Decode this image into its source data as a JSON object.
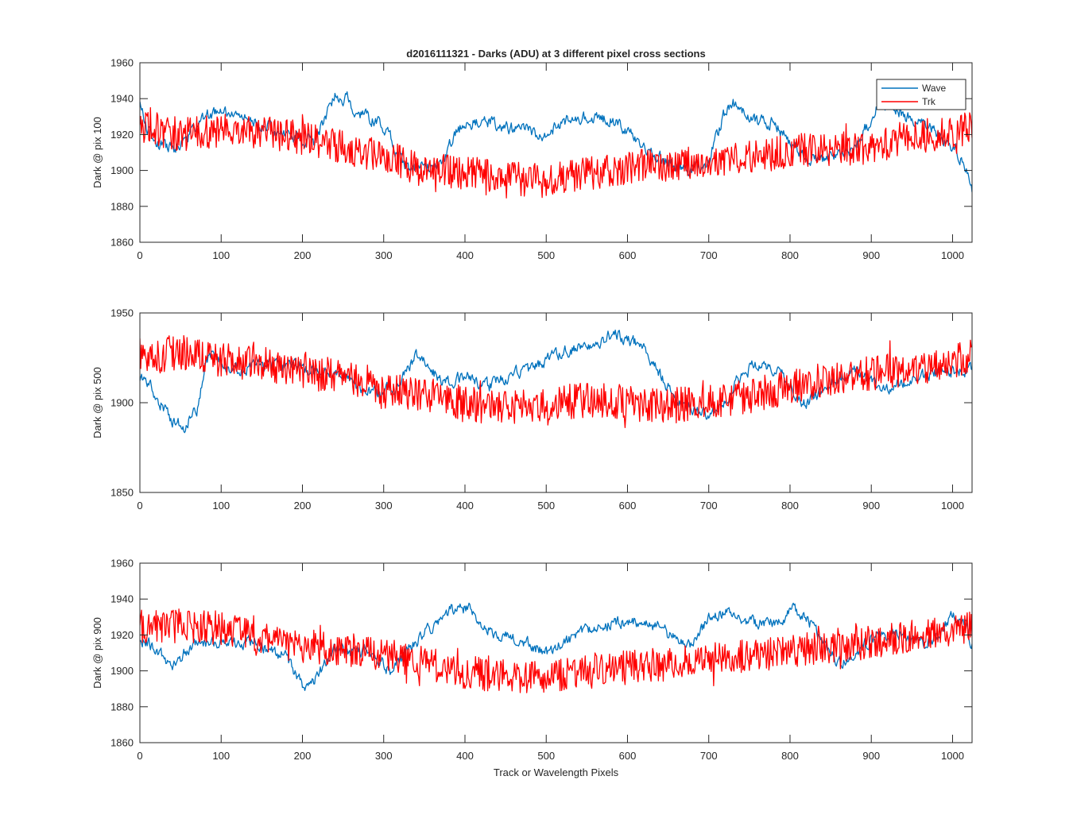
{
  "chart_data": [
    {
      "type": "line",
      "title": "d2016111321 - Darks (ADU) at 3 different pixel cross sections",
      "xlabel": "",
      "ylabel": "Dark @ pix 100",
      "xlim": [
        0,
        1024
      ],
      "ylim": [
        1860,
        1960
      ],
      "xticks": [
        0,
        100,
        200,
        300,
        400,
        500,
        600,
        700,
        800,
        900,
        1000
      ],
      "yticks": [
        1860,
        1880,
        1900,
        1920,
        1940,
        1960
      ],
      "legend": {
        "position": "top-right",
        "entries": [
          "Wave",
          "Trk"
        ]
      },
      "grid": false,
      "series": [
        {
          "name": "Wave",
          "color": "#0072BD",
          "keypoints": [
            [
              0,
              1938
            ],
            [
              8,
              1924
            ],
            [
              20,
              1915
            ],
            [
              40,
              1912
            ],
            [
              60,
              1920
            ],
            [
              80,
              1930
            ],
            [
              100,
              1933
            ],
            [
              120,
              1930
            ],
            [
              140,
              1928
            ],
            [
              160,
              1924
            ],
            [
              180,
              1920
            ],
            [
              200,
              1917
            ],
            [
              215,
              1916
            ],
            [
              228,
              1930
            ],
            [
              240,
              1942
            ],
            [
              255,
              1940
            ],
            [
              270,
              1931
            ],
            [
              290,
              1928
            ],
            [
              305,
              1922
            ],
            [
              315,
              1910
            ],
            [
              330,
              1901
            ],
            [
              345,
              1900
            ],
            [
              360,
              1904
            ],
            [
              375,
              1906
            ],
            [
              385,
              1918
            ],
            [
              400,
              1926
            ],
            [
              420,
              1928
            ],
            [
              440,
              1925
            ],
            [
              460,
              1923
            ],
            [
              480,
              1922
            ],
            [
              495,
              1919
            ],
            [
              510,
              1924
            ],
            [
              530,
              1929
            ],
            [
              560,
              1930
            ],
            [
              580,
              1928
            ],
            [
              600,
              1922
            ],
            [
              620,
              1912
            ],
            [
              640,
              1907
            ],
            [
              660,
              1903
            ],
            [
              680,
              1901
            ],
            [
              700,
              1906
            ],
            [
              718,
              1930
            ],
            [
              730,
              1937
            ],
            [
              745,
              1932
            ],
            [
              760,
              1926
            ],
            [
              780,
              1927
            ],
            [
              800,
              1915
            ],
            [
              820,
              1908
            ],
            [
              840,
              1905
            ],
            [
              860,
              1910
            ],
            [
              880,
              1913
            ],
            [
              895,
              1925
            ],
            [
              910,
              1938
            ],
            [
              930,
              1933
            ],
            [
              950,
              1929
            ],
            [
              970,
              1925
            ],
            [
              990,
              1917
            ],
            [
              1000,
              1914
            ],
            [
              1010,
              1908
            ],
            [
              1018,
              1898
            ],
            [
              1024,
              1890
            ]
          ],
          "amplitude": 3.5
        },
        {
          "name": "Trk",
          "color": "#FF0000",
          "keypoints": [
            [
              0,
              1925
            ],
            [
              50,
              1920
            ],
            [
              100,
              1922
            ],
            [
              150,
              1922
            ],
            [
              200,
              1918
            ],
            [
              250,
              1913
            ],
            [
              300,
              1908
            ],
            [
              350,
              1900
            ],
            [
              400,
              1899
            ],
            [
              450,
              1896
            ],
            [
              500,
              1894
            ],
            [
              550,
              1898
            ],
            [
              600,
              1902
            ],
            [
              650,
              1903
            ],
            [
              700,
              1904
            ],
            [
              750,
              1907
            ],
            [
              800,
              1911
            ],
            [
              850,
              1912
            ],
            [
              900,
              1913
            ],
            [
              950,
              1918
            ],
            [
              1000,
              1922
            ],
            [
              1024,
              1923
            ]
          ],
          "amplitude": 9.5
        }
      ]
    },
    {
      "type": "line",
      "title": "",
      "xlabel": "",
      "ylabel": "Dark @ pix 500",
      "xlim": [
        0,
        1024
      ],
      "ylim": [
        1850,
        1950
      ],
      "xticks": [
        0,
        100,
        200,
        300,
        400,
        500,
        600,
        700,
        800,
        900,
        1000
      ],
      "yticks": [
        1850,
        1900,
        1950
      ],
      "grid": false,
      "series": [
        {
          "name": "Wave",
          "color": "#0072BD",
          "keypoints": [
            [
              0,
              1914
            ],
            [
              10,
              1912
            ],
            [
              25,
              1900
            ],
            [
              40,
              1890
            ],
            [
              55,
              1887
            ],
            [
              70,
              1895
            ],
            [
              80,
              1920
            ],
            [
              90,
              1930
            ],
            [
              110,
              1918
            ],
            [
              140,
              1920
            ],
            [
              180,
              1921
            ],
            [
              200,
              1919
            ],
            [
              230,
              1916
            ],
            [
              255,
              1914
            ],
            [
              275,
              1906
            ],
            [
              300,
              1906
            ],
            [
              320,
              1912
            ],
            [
              340,
              1927
            ],
            [
              350,
              1925
            ],
            [
              370,
              1912
            ],
            [
              400,
              1914
            ],
            [
              430,
              1909
            ],
            [
              460,
              1916
            ],
            [
              480,
              1918
            ],
            [
              500,
              1924
            ],
            [
              520,
              1928
            ],
            [
              560,
              1933
            ],
            [
              580,
              1938
            ],
            [
              600,
              1936
            ],
            [
              620,
              1930
            ],
            [
              640,
              1916
            ],
            [
              660,
              1902
            ],
            [
              680,
              1896
            ],
            [
              700,
              1893
            ],
            [
              720,
              1902
            ],
            [
              740,
              1915
            ],
            [
              760,
              1922
            ],
            [
              790,
              1915
            ],
            [
              810,
              1904
            ],
            [
              820,
              1898
            ],
            [
              840,
              1908
            ],
            [
              860,
              1914
            ],
            [
              880,
              1917
            ],
            [
              900,
              1912
            ],
            [
              910,
              1906
            ],
            [
              930,
              1910
            ],
            [
              960,
              1914
            ],
            [
              990,
              1918
            ],
            [
              1024,
              1918
            ]
          ],
          "amplitude": 3.5
        },
        {
          "name": "Trk",
          "color": "#FF0000",
          "keypoints": [
            [
              0,
              1926
            ],
            [
              50,
              1928
            ],
            [
              100,
              1924
            ],
            [
              150,
              1922
            ],
            [
              200,
              1918
            ],
            [
              250,
              1914
            ],
            [
              300,
              1906
            ],
            [
              350,
              1905
            ],
            [
              400,
              1899
            ],
            [
              450,
              1897
            ],
            [
              500,
              1899
            ],
            [
              550,
              1902
            ],
            [
              600,
              1900
            ],
            [
              650,
              1898
            ],
            [
              700,
              1901
            ],
            [
              750,
              1904
            ],
            [
              800,
              1909
            ],
            [
              850,
              1913
            ],
            [
              900,
              1916
            ],
            [
              950,
              1919
            ],
            [
              1000,
              1923
            ],
            [
              1024,
              1925
            ]
          ],
          "amplitude": 10
        }
      ]
    },
    {
      "type": "line",
      "title": "",
      "xlabel": "Track or Wavelength Pixels",
      "ylabel": "Dark @ pix 900",
      "xlim": [
        0,
        1024
      ],
      "ylim": [
        1860,
        1960
      ],
      "xticks": [
        0,
        100,
        200,
        300,
        400,
        500,
        600,
        700,
        800,
        900,
        1000
      ],
      "yticks": [
        1860,
        1880,
        1900,
        1920,
        1940,
        1960
      ],
      "grid": false,
      "series": [
        {
          "name": "Wave",
          "color": "#0072BD",
          "keypoints": [
            [
              0,
              1918
            ],
            [
              20,
              1912
            ],
            [
              40,
              1902
            ],
            [
              60,
              1913
            ],
            [
              100,
              1917
            ],
            [
              140,
              1916
            ],
            [
              180,
              1908
            ],
            [
              200,
              1892
            ],
            [
              215,
              1895
            ],
            [
              240,
              1912
            ],
            [
              280,
              1910
            ],
            [
              310,
              1900
            ],
            [
              330,
              1912
            ],
            [
              350,
              1921
            ],
            [
              370,
              1928
            ],
            [
              390,
              1936
            ],
            [
              405,
              1934
            ],
            [
              420,
              1925
            ],
            [
              440,
              1921
            ],
            [
              470,
              1917
            ],
            [
              500,
              1910
            ],
            [
              520,
              1915
            ],
            [
              550,
              1922
            ],
            [
              580,
              1926
            ],
            [
              610,
              1928
            ],
            [
              640,
              1924
            ],
            [
              660,
              1917
            ],
            [
              680,
              1914
            ],
            [
              700,
              1930
            ],
            [
              720,
              1932
            ],
            [
              760,
              1926
            ],
            [
              790,
              1928
            ],
            [
              805,
              1934
            ],
            [
              820,
              1931
            ],
            [
              840,
              1915
            ],
            [
              860,
              1903
            ],
            [
              880,
              1909
            ],
            [
              900,
              1918
            ],
            [
              930,
              1921
            ],
            [
              960,
              1915
            ],
            [
              985,
              1918
            ],
            [
              1000,
              1932
            ],
            [
              1015,
              1927
            ],
            [
              1024,
              1915
            ]
          ],
          "amplitude": 3.5
        },
        {
          "name": "Trk",
          "color": "#FF0000",
          "keypoints": [
            [
              0,
              1925
            ],
            [
              50,
              1925
            ],
            [
              100,
              1924
            ],
            [
              150,
              1917
            ],
            [
              200,
              1914
            ],
            [
              250,
              1912
            ],
            [
              300,
              1909
            ],
            [
              350,
              1904
            ],
            [
              400,
              1899
            ],
            [
              450,
              1897
            ],
            [
              500,
              1897
            ],
            [
              550,
              1899
            ],
            [
              600,
              1902
            ],
            [
              650,
              1904
            ],
            [
              700,
              1906
            ],
            [
              750,
              1908
            ],
            [
              800,
              1911
            ],
            [
              850,
              1914
            ],
            [
              900,
              1916
            ],
            [
              950,
              1919
            ],
            [
              1000,
              1922
            ],
            [
              1024,
              1924
            ]
          ],
          "amplitude": 9.5
        }
      ]
    }
  ]
}
